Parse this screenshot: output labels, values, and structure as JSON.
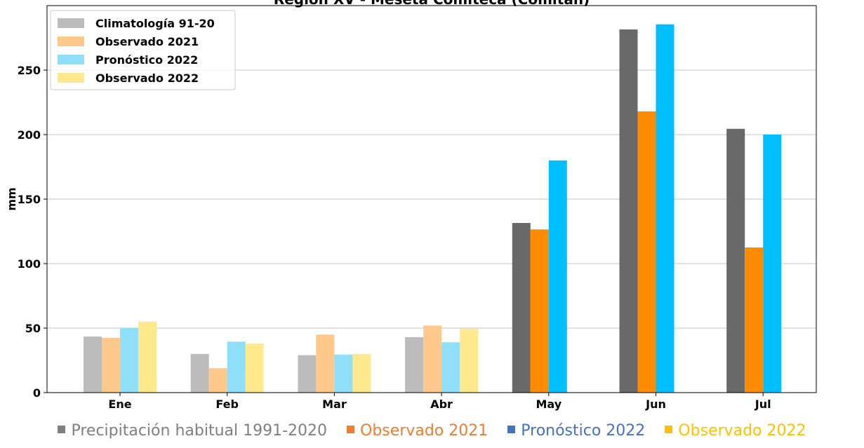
{
  "chart_data": {
    "type": "bar",
    "title": "Región XV - Meseta Comiteca (Comitán)",
    "ylabel": "mm",
    "categories": [
      "Ene",
      "Feb",
      "Mar",
      "Abr",
      "May",
      "Jun",
      "Jul"
    ],
    "series": [
      {
        "name": "Climatología 91-20",
        "colors": [
          "#bcbcbc",
          "#bcbcbc",
          "#bcbcbc",
          "#bcbcbc",
          "#696969",
          "#696969",
          "#696969"
        ],
        "values": [
          43.5,
          30,
          29,
          43,
          131.5,
          281.5,
          204.5
        ]
      },
      {
        "name": "Observado 2021",
        "colors": [
          "#ffc98c",
          "#ffc98c",
          "#ffc98c",
          "#ffc98c",
          "#ff8c00",
          "#ff8c00",
          "#ff8c00"
        ],
        "values": [
          42.5,
          19,
          45,
          52,
          126.5,
          218,
          112.5
        ]
      },
      {
        "name": "Pronóstico 2022",
        "colors": [
          "#8fdffa",
          "#8fdffa",
          "#8fdffa",
          "#8fdffa",
          "#00bfff",
          "#00bfff",
          "#00bfff"
        ],
        "values": [
          50,
          39.5,
          29.5,
          39,
          180,
          285.5,
          200
        ]
      },
      {
        "name": "Observado 2022",
        "colors": [
          "#ffe98c",
          "#ffe98c",
          "#ffe98c",
          "#ffe98c",
          "#ffd700",
          "#ffd700",
          "#ffd700"
        ],
        "values": [
          55,
          38,
          30,
          49.5,
          null,
          null,
          null
        ]
      }
    ],
    "ylim": [
      0,
      300
    ],
    "yticks": [
      0,
      50,
      100,
      150,
      200,
      250
    ],
    "grid": true,
    "legend": "upper left",
    "footer_legend": [
      {
        "name": "Precipitación habitual 1991-2020",
        "color": "#7f7f7f"
      },
      {
        "name": "Observado 2021",
        "color": "#ed7d31"
      },
      {
        "name": "Pronóstico 2022",
        "color": "#4472c4"
      },
      {
        "name": "Observado 2022",
        "color": "#ffc000"
      }
    ]
  }
}
